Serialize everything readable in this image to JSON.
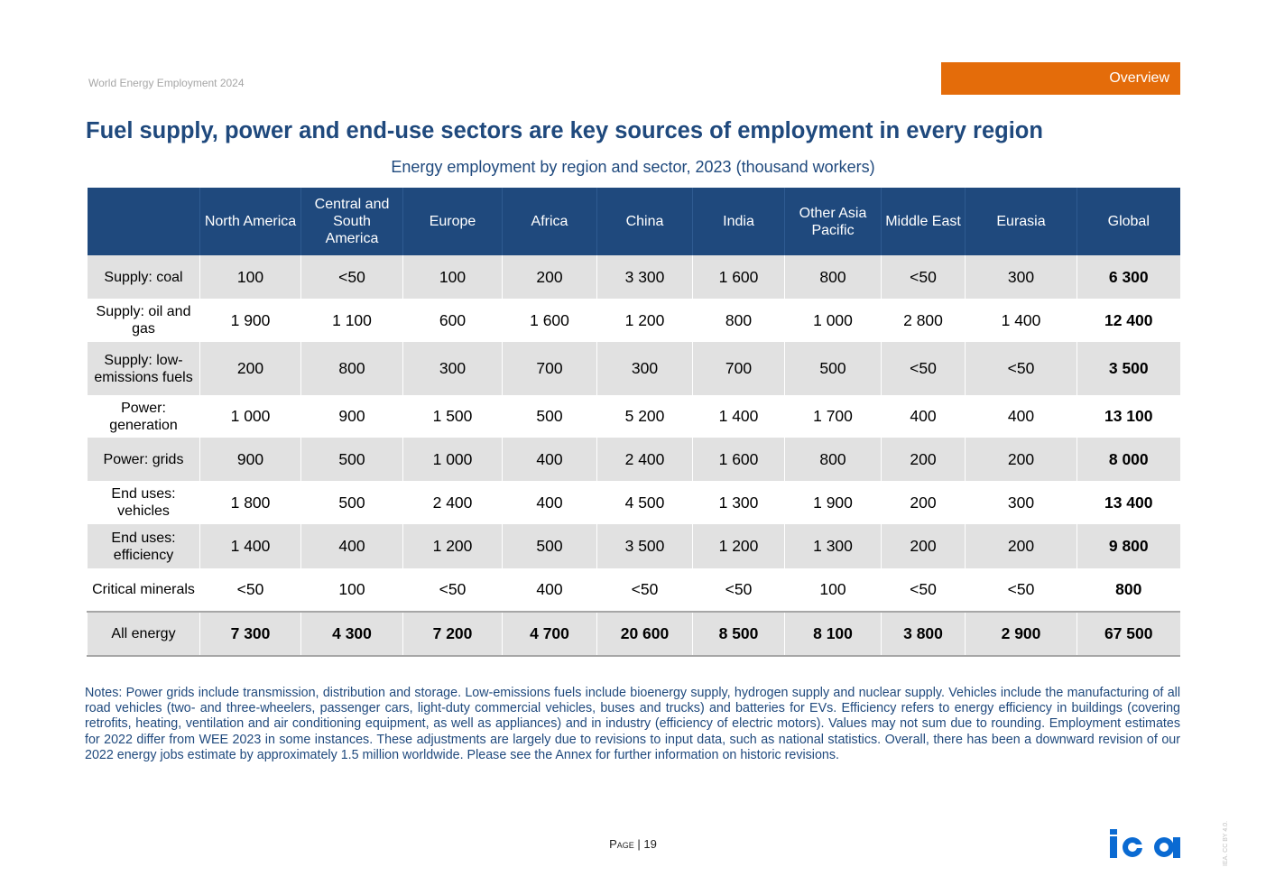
{
  "header": {
    "report_title": "World Energy Employment 2024",
    "section_tag": "Overview"
  },
  "title": "Fuel supply, power and end-use sectors are key sources of employment in every region",
  "subtitle": "Energy employment by region and sector, 2023 (thousand workers)",
  "table": {
    "columns": [
      "North America",
      "Central and South America",
      "Europe",
      "Africa",
      "China",
      "India",
      "Other Asia Pacific",
      "Middle East",
      "Eurasia",
      "Global"
    ],
    "rows": [
      {
        "label": "Supply: coal",
        "values": [
          "100",
          "<50",
          "100",
          "200",
          "3 300",
          "1 600",
          "800",
          "<50",
          "300",
          "6 300"
        ]
      },
      {
        "label": "Supply: oil and gas",
        "values": [
          "1 900",
          "1 100",
          "600",
          "1 600",
          "1 200",
          "800",
          "1 000",
          "2 800",
          "1 400",
          "12 400"
        ]
      },
      {
        "label": "Supply: low-emissions fuels",
        "values": [
          "200",
          "800",
          "300",
          "700",
          "300",
          "700",
          "500",
          "<50",
          "<50",
          "3 500"
        ]
      },
      {
        "label": "Power: generation",
        "values": [
          "1 000",
          "900",
          "1 500",
          "500",
          "5 200",
          "1 400",
          "1 700",
          "400",
          "400",
          "13 100"
        ]
      },
      {
        "label": "Power: grids",
        "values": [
          "900",
          "500",
          "1 000",
          "400",
          "2 400",
          "1 600",
          "800",
          "200",
          "200",
          "8 000"
        ]
      },
      {
        "label": "End uses: vehicles",
        "values": [
          "1 800",
          "500",
          "2 400",
          "400",
          "4 500",
          "1 300",
          "1 900",
          "200",
          "300",
          "13 400"
        ]
      },
      {
        "label": "End uses: efficiency",
        "values": [
          "1 400",
          "400",
          "1 200",
          "500",
          "3 500",
          "1 200",
          "1 300",
          "200",
          "200",
          "9 800"
        ]
      },
      {
        "label": "Critical minerals",
        "values": [
          "<50",
          "100",
          "<50",
          "400",
          "<50",
          "<50",
          "100",
          "<50",
          "<50",
          "800"
        ]
      },
      {
        "label": "All energy",
        "values": [
          "7 300",
          "4 300",
          "7 200",
          "4 700",
          "20 600",
          "8 500",
          "8 100",
          "3 800",
          "2 900",
          "67 500"
        ]
      }
    ]
  },
  "notes": "Notes: Power grids include transmission, distribution and storage. Low-emissions fuels include bioenergy supply, hydrogen supply and nuclear supply. Vehicles include the manufacturing of all road vehicles (two- and three-wheelers, passenger cars, light-duty commercial vehicles, buses and trucks) and batteries for EVs. Efficiency refers to energy efficiency in buildings (covering retrofits, heating, ventilation and air conditioning equipment, as well as appliances) and in industry (efficiency of electric motors). Values may not sum due to rounding. Employment estimates for 2022 differ from WEE 2023 in some instances. These adjustments are largely due to revisions to input data, such as national statistics. Overall, there has been a downward revision of our 2022 energy jobs estimate by approximately 1.5 million worldwide. Please see the Annex for further information on historic revisions.",
  "footer": {
    "page_label": "Page",
    "separator": "|",
    "page_number": "19",
    "logo_text": "iea",
    "license": "IEA. CC BY 4.0."
  },
  "colors": {
    "navy": "#1f497d",
    "orange": "#e46c0a",
    "shade": "#e1e1e1",
    "logo_blue": "#0a6ad2"
  }
}
